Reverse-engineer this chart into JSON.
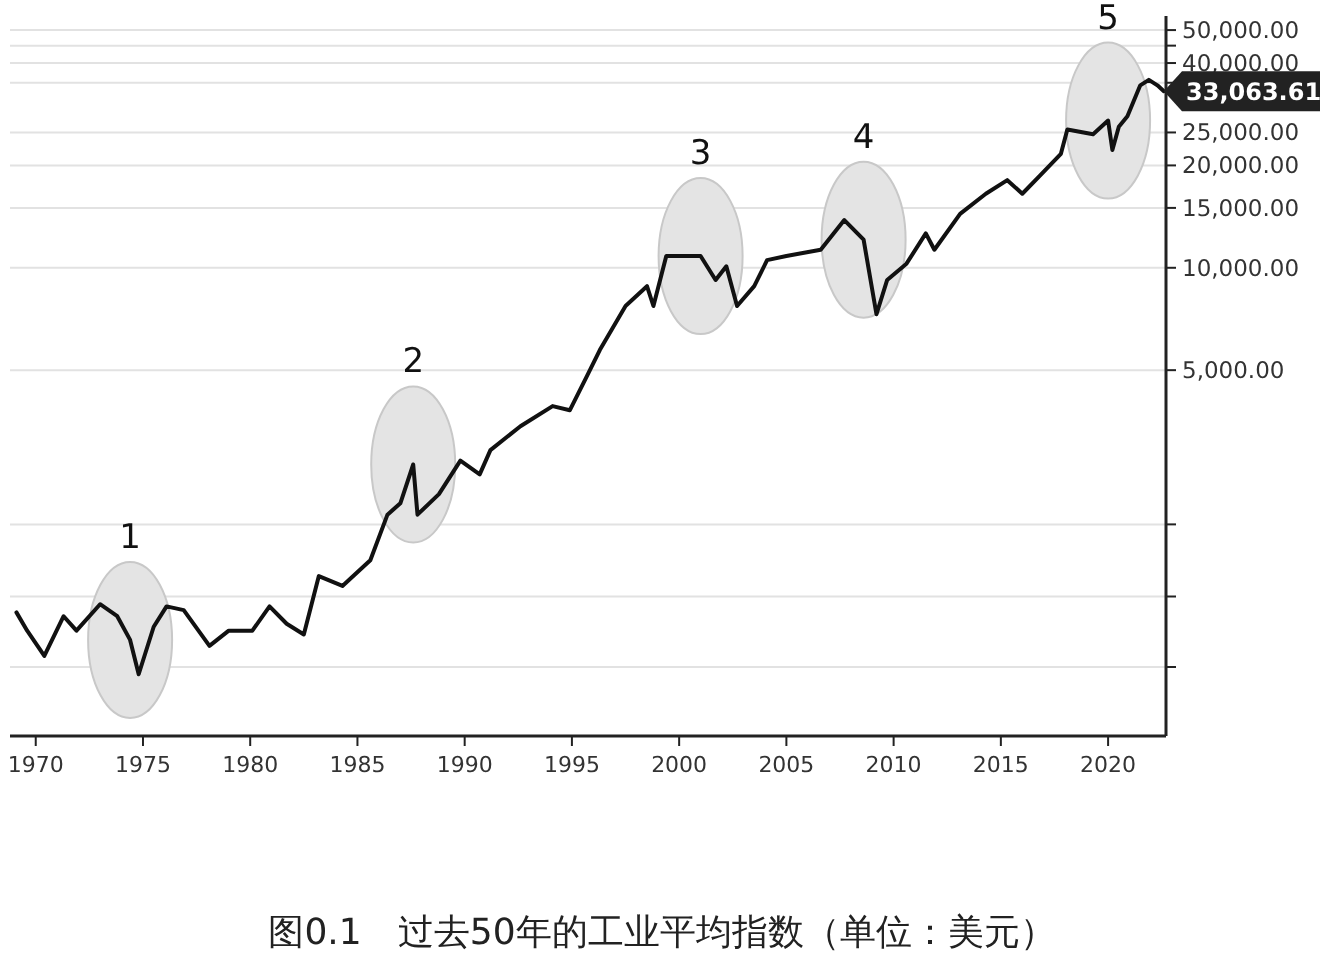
{
  "chart_data": {
    "type": "line",
    "title": "图0.1　过去50年的工业平均指数（单位：美元）",
    "x": [
      1969.1,
      1969.6,
      1970.4,
      1971.3,
      1971.9,
      1973.0,
      1973.8,
      1974.4,
      1974.8,
      1975.5,
      1976.1,
      1976.9,
      1978.1,
      1979.0,
      1980.1,
      1980.9,
      1981.7,
      1982.5,
      1983.2,
      1984.3,
      1985.6,
      1986.4,
      1987.0,
      1987.6,
      1987.8,
      1988.8,
      1989.8,
      1990.7,
      1991.2,
      1992.6,
      1994.1,
      1994.9,
      1995.7,
      1996.3,
      1997.5,
      1998.5,
      1998.8,
      1999.4,
      2001.0,
      2001.7,
      2002.2,
      2002.7,
      2003.5,
      2004.1,
      2005.0,
      2006.6,
      2007.7,
      2008.6,
      2009.2,
      2009.7,
      2010.6,
      2011.5,
      2011.9,
      2013.1,
      2014.3,
      2015.3,
      2016.0,
      2016.8,
      2017.8,
      2018.1,
      2019.3,
      2020.0,
      2020.2,
      2020.5,
      2020.9,
      2021.5,
      2021.9,
      2022.3,
      2022.6
    ],
    "series": [
      {
        "color": "#111111",
        "values": [
          970,
          857,
          722,
          945,
          857,
          1025,
          945,
          805,
          638,
          880,
          1010,
          985,
          773,
          857,
          857,
          1010,
          898,
          835,
          1240,
          1160,
          1380,
          1880,
          2030,
          2640,
          1880,
          2160,
          2710,
          2470,
          2910,
          3420,
          3920,
          3810,
          4800,
          5730,
          7720,
          8830,
          7720,
          10830,
          10830,
          9210,
          10100,
          7720,
          8830,
          10530,
          10830,
          11300,
          13810,
          12100,
          7300,
          9210,
          10280,
          12620,
          11300,
          14400,
          16510,
          18100,
          16510,
          18600,
          21640,
          25500,
          24700,
          27100,
          22200,
          26000,
          27900,
          34400,
          35700,
          34400,
          33063.61
        ]
      }
    ],
    "log": "y",
    "xlim": [
      1968.8,
      2022.7
    ],
    "ylim": [
      420,
      55000
    ],
    "xticks": [
      1970,
      1975,
      1980,
      1985,
      1990,
      1995,
      2000,
      2005,
      2010,
      2015,
      2020
    ],
    "yticks": [
      {
        "value": 670,
        "label": null
      },
      {
        "value": 1080,
        "label": null
      },
      {
        "value": 1760,
        "label": null
      },
      {
        "value": 5000,
        "label": "5,000.00"
      },
      {
        "value": 10000,
        "label": "10,000.00"
      },
      {
        "value": 15000,
        "label": "15,000.00"
      },
      {
        "value": 20000,
        "label": "20,000.00"
      },
      {
        "value": 25000,
        "label": "25,000.00"
      },
      {
        "value": 35000,
        "label": null
      },
      {
        "value": 40000,
        "label": "40,000.00"
      },
      {
        "value": 45000,
        "label": null
      },
      {
        "value": 50000,
        "label": "50,000.00"
      }
    ],
    "grid": "y",
    "marker": "none",
    "line_style": "solid",
    "annotations": [
      {
        "text": "1",
        "x": 1974.4,
        "y": 805
      },
      {
        "text": "2",
        "x": 1987.6,
        "y": 2640
      },
      {
        "text": "3",
        "x": 2001.0,
        "y": 10830
      },
      {
        "text": "4",
        "x": 2008.6,
        "y": 12100
      },
      {
        "text": "5",
        "x": 2020.0,
        "y": 27100
      },
      {
        "text": "33,063.61",
        "x": 2022.6,
        "y": 33063.61
      }
    ]
  }
}
